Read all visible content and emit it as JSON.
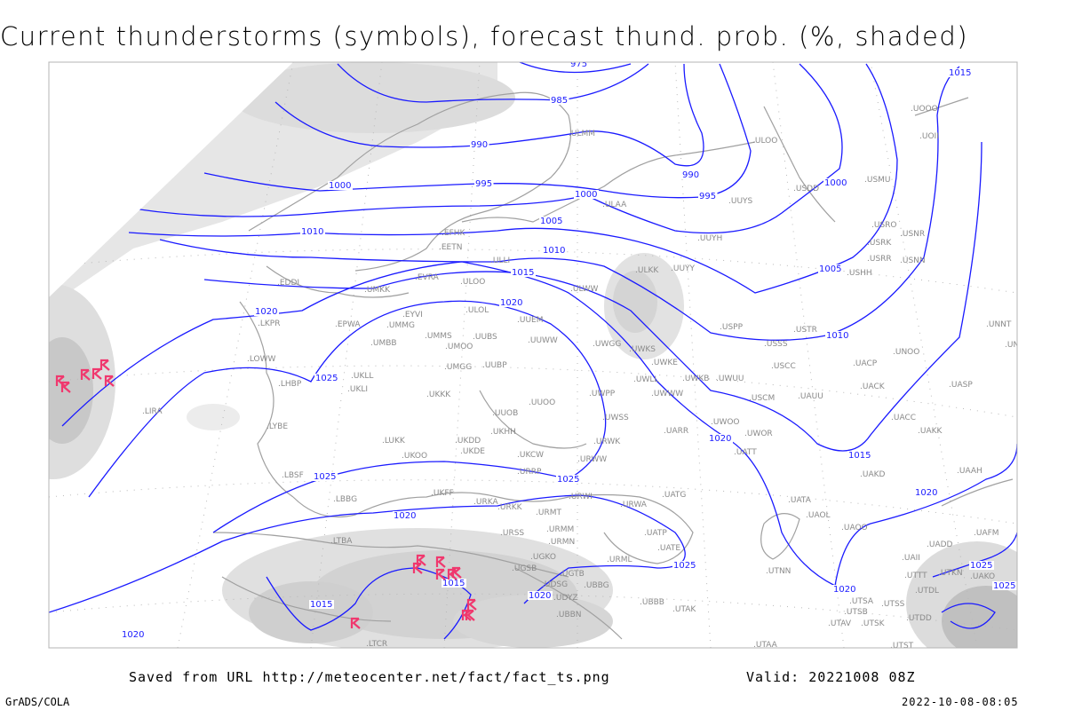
{
  "title": "Current thunderstorms (symbols), forecast thund. prob. (%, shaded)",
  "footer": {
    "source": "Saved from URL http://meteocenter.net/fact/fact_ts.png",
    "valid": "Valid: 20221008 08Z",
    "software": "GrADS/COLA",
    "timestamp": "2022-10-08-08:05"
  },
  "colors": {
    "isobar": "#1a1aff",
    "coastline": "#a0a0a0",
    "storm_symbol": "#f0386e",
    "shade_light": "#e4e4e4",
    "shade_mid": "#d2d2d2",
    "shade_dark": "#bdbdbd",
    "frame": "#b4b4b4"
  },
  "legend_icons": {
    "storm_symbol": "thunderstorm-icon"
  },
  "isobar_labels": [
    "975",
    "985",
    "990",
    "990",
    "995",
    "995",
    "1000",
    "1000",
    "1000",
    "1005",
    "1005",
    "1010",
    "1010",
    "1010",
    "1015",
    "1015",
    "1015",
    "1015",
    "1015",
    "1020",
    "1020",
    "1020",
    "1020",
    "1020",
    "1020",
    "1020",
    "1020",
    "1025",
    "1025",
    "1025",
    "1025",
    "1025",
    "1025"
  ],
  "stations": [
    "ULAA",
    "ULMM",
    "ULOO",
    "USDD",
    "USMU",
    "UUYS",
    "UOOO",
    "UOII",
    "UUYH",
    "USRO",
    "USNR",
    "USRK",
    "USRR",
    "USNN",
    "ULKK",
    "UUYY",
    "USHH",
    "USPP",
    "USTR",
    "USSS",
    "UNNT",
    "UNBB",
    "UNOO",
    "UWKS",
    "UWKE",
    "USCC",
    "UACP",
    "UWLL",
    "UWKB",
    "UWUU",
    "UACK",
    "UASP",
    "UWWW",
    "USCM",
    "UAUU",
    "UWPP",
    "UUOO",
    "UUOB",
    "UWSS",
    "UWOO",
    "UACC",
    "UARR",
    "UWOR",
    "UATT",
    "UAKK",
    "URWK",
    "URWW",
    "UKKK",
    "UKHH",
    "UKDD",
    "UKDE",
    "UKCW",
    "UKOO",
    "LUKK",
    "URRP",
    "LYBE",
    "LBSF",
    "LBBG",
    "LHBP",
    "UKLL",
    "UKLI",
    "UMBB",
    "UMMS",
    "UMOO",
    "UUBS",
    "UMGG",
    "UUBP",
    "UMMG",
    "EYVI",
    "EPWA",
    "LOWW",
    "LKPR",
    "EDDI",
    "UMKK",
    "EVRA",
    "ULOO",
    "ULOL",
    "UUEM",
    "UUWW",
    "UWGG",
    "ULWW",
    "EFHK",
    "EETN",
    "ULLI",
    "LIRA",
    "LTBA",
    "LTCR",
    "UKFF",
    "URKA",
    "URKK",
    "URMT",
    "URMM",
    "URMN",
    "URSS",
    "UGKO",
    "UGSB",
    "UGTB",
    "UDSG",
    "UBBG",
    "UDYZ",
    "UBBN",
    "UBBB",
    "URWI",
    "URWA",
    "UATG",
    "UATP",
    "UATE",
    "URML",
    "UTAK",
    "UTNN",
    "UATA",
    "UAOL",
    "UAOO",
    "UAKD",
    "UAAH",
    "UAFM",
    "UADD",
    "UAII",
    "UTTT",
    "UTKN",
    "UAKO",
    "UTDL",
    "UTSA",
    "UTSB",
    "UTSS",
    "UTDD",
    "UTAV",
    "UTSK",
    "UTAA",
    "UTST"
  ]
}
